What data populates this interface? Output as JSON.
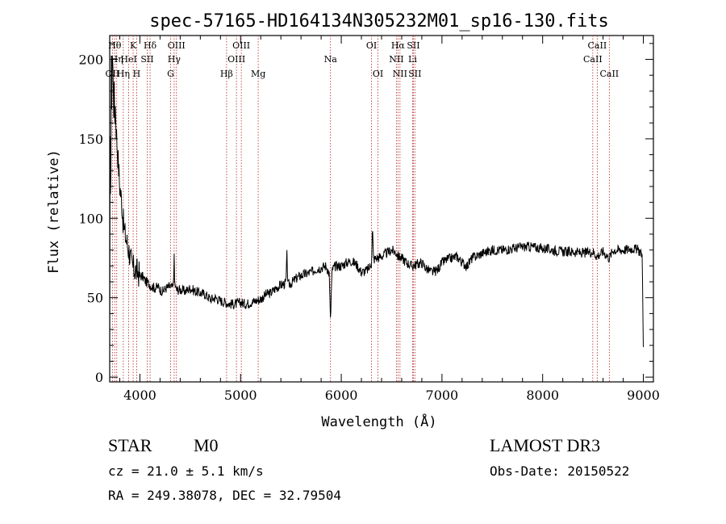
{
  "chart_data": {
    "type": "line",
    "title": "spec-57165-HD164134N305232M01_sp16-130.fits",
    "xlabel": "Wavelength (Å)",
    "ylabel": "Flux (relative)",
    "xlim": [
      3700,
      9100
    ],
    "ylim": [
      -3,
      215
    ],
    "xticks": [
      4000,
      5000,
      6000,
      7000,
      8000,
      9000
    ],
    "yticks": [
      0,
      50,
      100,
      150,
      200
    ],
    "grid": false,
    "legend": "none",
    "series": [
      {
        "x": [
          3700,
          3705,
          3710,
          3715,
          3720,
          3725,
          3730,
          3735,
          3740,
          3745,
          3750,
          3755,
          3760,
          3765,
          3770,
          3780,
          3790,
          3800,
          3810,
          3820,
          3830,
          3840,
          3850,
          3860,
          3870,
          3880,
          3890,
          3900,
          3920,
          3940,
          3960,
          3980,
          4000,
          4030,
          4060,
          4090,
          4100,
          4120,
          4150,
          4180,
          4200,
          4230,
          4260,
          4300,
          4330,
          4340,
          4345,
          4350,
          4360,
          4400,
          4450,
          4500,
          4550,
          4600,
          4650,
          4700,
          4750,
          4800,
          4850,
          4900,
          4950,
          5000,
          5050,
          5100,
          5150,
          5200,
          5250,
          5300,
          5350,
          5400,
          5450,
          5460,
          5470,
          5500,
          5550,
          5600,
          5650,
          5700,
          5750,
          5800,
          5850,
          5880,
          5890,
          5895,
          5900,
          5910,
          5950,
          6000,
          6050,
          6100,
          6150,
          6200,
          6250,
          6280,
          6300,
          6310,
          6320,
          6350,
          6400,
          6450,
          6500,
          6550,
          6563,
          6600,
          6650,
          6700,
          6750,
          6800,
          6850,
          6900,
          6950,
          7000,
          7050,
          7100,
          7150,
          7200,
          7250,
          7300,
          7400,
          7500,
          7600,
          7700,
          7800,
          7900,
          8000,
          8100,
          8200,
          8300,
          8400,
          8500,
          8540,
          8600,
          8660,
          8700,
          8800,
          8900,
          8950,
          8980,
          8990,
          9000
        ],
        "y": [
          0,
          180,
          85,
          200,
          175,
          210,
          195,
          190,
          170,
          180,
          160,
          172,
          165,
          155,
          150,
          140,
          130,
          120,
          115,
          110,
          100,
          95,
          90,
          88,
          85,
          82,
          80,
          77,
          70,
          68,
          67,
          66,
          64,
          63,
          60,
          59,
          58,
          57,
          56,
          57,
          55,
          54,
          56,
          57,
          56,
          75,
          58,
          58,
          55,
          55,
          54,
          56,
          54,
          53,
          52,
          49,
          50,
          48,
          47,
          46,
          46,
          47,
          46,
          47,
          48,
          49,
          52,
          53,
          56,
          58,
          59,
          77,
          58,
          59,
          62,
          64,
          65,
          66,
          68,
          69,
          70,
          65,
          40,
          37,
          52,
          68,
          70,
          70,
          72,
          73,
          71,
          66,
          67,
          69,
          72,
          95,
          74,
          75,
          76,
          78,
          80,
          78,
          76,
          75,
          72,
          70,
          71,
          72,
          68,
          66,
          67,
          72,
          74,
          75,
          76,
          72,
          70,
          75,
          78,
          80,
          80,
          81,
          82,
          82,
          81,
          80,
          79,
          79,
          78,
          79,
          76,
          79,
          75,
          80,
          80,
          81,
          80,
          78,
          76,
          18
        ]
      }
    ],
    "spectral_lines": [
      {
        "label": "OII",
        "x": 3727,
        "row": 2
      },
      {
        "label": "Hθ",
        "x": 3750,
        "row": 0
      },
      {
        "label": "Hη",
        "x": 3770,
        "row": 1
      },
      {
        "label": "Hη",
        "x": 3835,
        "row": 2
      },
      {
        "label": "K",
        "x": 3933,
        "row": 0
      },
      {
        "label": "HeI",
        "x": 3889,
        "row": 1
      },
      {
        "label": "H",
        "x": 3968,
        "row": 2
      },
      {
        "label": "SII",
        "x": 4072,
        "row": 1
      },
      {
        "label": "Hδ",
        "x": 4101,
        "row": 0
      },
      {
        "label": "OIII",
        "x": 4363,
        "row": 0
      },
      {
        "label": "Hγ",
        "x": 4340,
        "row": 1
      },
      {
        "label": "G",
        "x": 4305,
        "row": 2
      },
      {
        "label": "OIII",
        "x": 5007,
        "row": 0
      },
      {
        "label": "OIII",
        "x": 4959,
        "row": 1
      },
      {
        "label": "Hβ",
        "x": 4861,
        "row": 2
      },
      {
        "label": "Mg",
        "x": 5175,
        "row": 2
      },
      {
        "label": "Na",
        "x": 5893,
        "row": 1
      },
      {
        "label": "OI",
        "x": 6300,
        "row": 0
      },
      {
        "label": "OI",
        "x": 6364,
        "row": 2
      },
      {
        "label": "Hα",
        "x": 6563,
        "row": 0
      },
      {
        "label": "SII",
        "x": 6716,
        "row": 0
      },
      {
        "label": "NII",
        "x": 6548,
        "row": 1
      },
      {
        "label": "Li",
        "x": 6708,
        "row": 1
      },
      {
        "label": "NII",
        "x": 6583,
        "row": 2
      },
      {
        "label": "SII",
        "x": 6731,
        "row": 2
      },
      {
        "label": "CaII",
        "x": 8542,
        "row": 0
      },
      {
        "label": "CaII",
        "x": 8498,
        "row": 1
      },
      {
        "label": "CaII",
        "x": 8662,
        "row": 2
      }
    ]
  },
  "info": {
    "object_class": "STAR",
    "subclass": "M0",
    "survey": "LAMOST DR3",
    "redshift": "cz = 21.0 ± 5.1 km/s",
    "obs_date": "Obs-Date: 20150522",
    "coords": "RA = 249.38078, DEC =  32.79504"
  }
}
